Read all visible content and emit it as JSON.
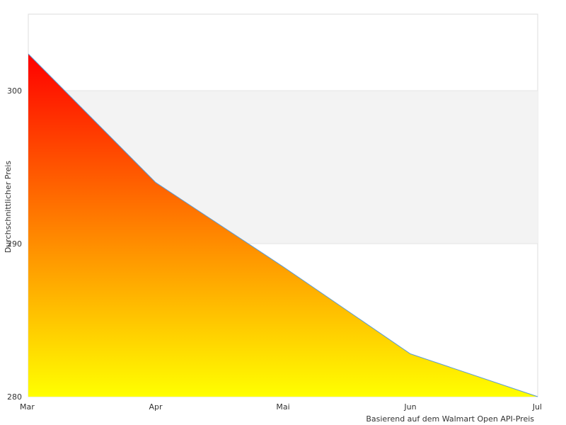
{
  "chart_data": {
    "type": "area",
    "categories": [
      "Mar",
      "Apr",
      "Mai",
      "Jun",
      "Jul"
    ],
    "values": [
      302.4,
      294.0,
      288.5,
      282.8,
      280.0
    ],
    "ylabel": "Durchschnittlicher Preis",
    "xlabel": "",
    "ylim": [
      280,
      305
    ],
    "yticks": [
      "280",
      "290",
      "300"
    ],
    "band": [
      290,
      300
    ],
    "grid": "horizontal bands",
    "legend": "none",
    "colors": {
      "fill_top": "#ff0000",
      "fill_bottom": "#ffff00",
      "line": "#5b9bd5",
      "band": "#f3f3f3",
      "border": "#dddddd"
    }
  },
  "credit": "Basierend auf dem Walmart Open API-Preis"
}
